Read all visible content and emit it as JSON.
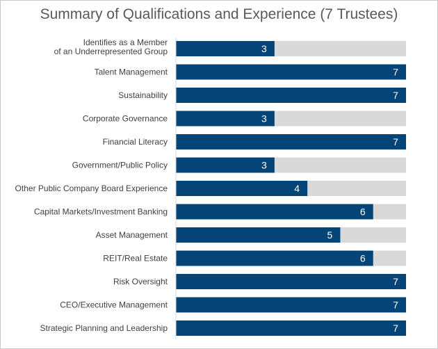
{
  "chart_data": {
    "type": "bar",
    "orientation": "horizontal",
    "title": "Summary of Qualifications and Experience (7 Trustees)",
    "categories": [
      [
        "Identifies as a Member",
        "of an Underrepresented Group"
      ],
      [
        "Talent Management"
      ],
      [
        "Sustainability"
      ],
      [
        "Corporate Governance"
      ],
      [
        "Financial Literacy"
      ],
      [
        "Government/Public Policy"
      ],
      [
        "Other Public Company Board Experience"
      ],
      [
        "Capital Markets/Investment Banking"
      ],
      [
        "Asset Management"
      ],
      [
        "REIT/Real Estate"
      ],
      [
        "Risk Oversight"
      ],
      [
        "CEO/Executive Management"
      ],
      [
        "Strategic Planning and Leadership"
      ]
    ],
    "values": [
      3,
      7,
      7,
      3,
      7,
      3,
      4,
      6,
      5,
      6,
      7,
      7,
      7
    ],
    "total": 7,
    "xlim": [
      0,
      7
    ],
    "grid": false,
    "colors": {
      "bar": "#044477",
      "track": "#d9d9d9",
      "value_text": "#ffffff",
      "label_text": "#404040",
      "title_text": "#595959",
      "axis_line": "#d9d9d9"
    }
  }
}
